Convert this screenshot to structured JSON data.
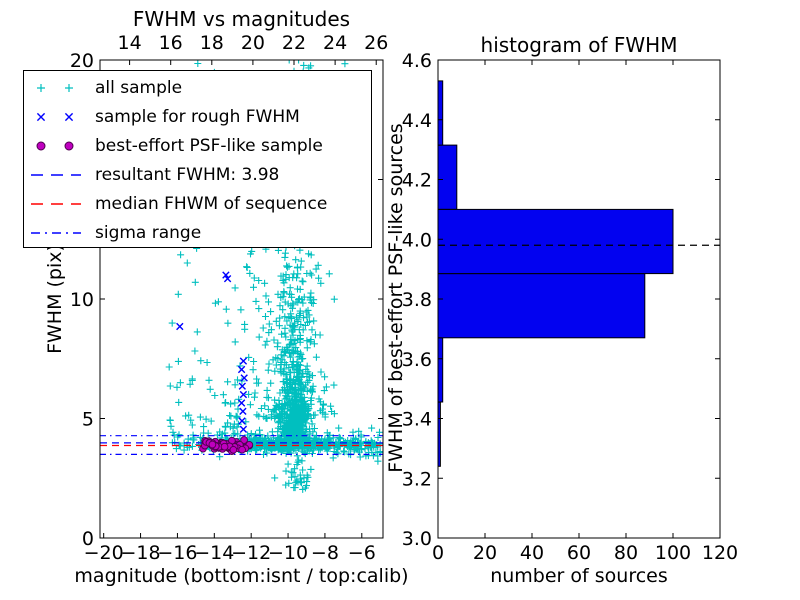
{
  "colors": {
    "cyan": "#00bfbf",
    "blue": "#0000ff",
    "magenta": "#bf00bf",
    "magenta_edge": "#4d004d",
    "red": "#ff0000",
    "black": "#000000",
    "bar_fill": "#0202f0",
    "frame": "#000000",
    "background": "#ffffff"
  },
  "chart_data": [
    {
      "type": "scatter",
      "title": "FWHM vs magnitudes",
      "xlabel": "magnitude (bottom:isnt / top:calib)",
      "ylabel": "FWHM (pix)",
      "xlim": [
        -20.2,
        -4.85
      ],
      "ylim": [
        0,
        20
      ],
      "grid": false,
      "x_bottom_ticks": {
        "values": [
          -20,
          -18,
          -16,
          -14,
          -12,
          -10,
          -8,
          -6
        ],
        "labels": [
          "−20",
          "−18",
          "−16",
          "−14",
          "−12",
          "−10",
          "−8",
          "−6"
        ]
      },
      "x_top_ticks": {
        "calib_lim": [
          12.56,
          26.33
        ],
        "values": [
          14,
          16,
          18,
          20,
          22,
          24,
          26
        ],
        "labels": [
          "14",
          "16",
          "18",
          "20",
          "22",
          "24",
          "26"
        ]
      },
      "y_ticks": {
        "values": [
          0,
          5,
          10,
          15,
          20
        ],
        "labels": [
          "0",
          "5",
          "10",
          "15",
          "20"
        ]
      },
      "hlines": [
        {
          "y": 4.28,
          "style": "dashdot",
          "color": "blue",
          "name": "sigma-range-upper"
        },
        {
          "y": 3.98,
          "style": "dashed",
          "color": "blue",
          "name": "resultant-fwhm"
        },
        {
          "y": 3.87,
          "style": "dashed",
          "color": "red",
          "name": "median-fwhm"
        },
        {
          "y": 3.5,
          "style": "dashdot",
          "color": "blue",
          "name": "sigma-range-lower"
        }
      ],
      "series": [
        {
          "name": "all sample",
          "marker": "plus",
          "color": "cyan",
          "seed": 42,
          "clusters": [
            {
              "n": 450,
              "x": {
                "dist": "normal",
                "mu": -10.0,
                "sd": 2.0,
                "min": -16.3,
                "max": -5.0
              },
              "y": {
                "dist": "normal",
                "mu": 3.92,
                "sd": 0.13,
                "min": 3.4,
                "max": 4.5
              }
            },
            {
              "n": 150,
              "x": {
                "dist": "uniform",
                "min": -16.3,
                "max": -5.0
              },
              "y": {
                "dist": "normal",
                "mu": 3.95,
                "sd": 0.22,
                "min": 3.3,
                "max": 4.7
              }
            },
            {
              "n": 550,
              "x": {
                "dist": "normal",
                "mu": -9.65,
                "sd": 0.45,
                "min": -12,
                "max": -7.5
              },
              "y": {
                "dist": "expshift",
                "base": 3.75,
                "mu": 0.45,
                "sd": 0.85,
                "max": 20
              }
            },
            {
              "n": 250,
              "x": {
                "dist": "normal",
                "mu": -9.9,
                "sd": 1.1,
                "min": -13.5,
                "max": -6.2
              },
              "y": {
                "dist": "powband",
                "min": 5.0,
                "span": 9.0,
                "pow": 1.6
              }
            },
            {
              "n": 90,
              "x": {
                "dist": "uniform",
                "min": -16.5,
                "max": -11.0
              },
              "y": {
                "dist": "powband",
                "min": 4.3,
                "span": 8.5,
                "pow": 2.2
              }
            },
            {
              "n": 40,
              "x": {
                "dist": "uniform",
                "min": -15.0,
                "max": -6.3
              },
              "y": {
                "dist": "uniform",
                "min": 13.5,
                "max": 20.0
              }
            },
            {
              "n": 35,
              "x": {
                "dist": "normal",
                "mu": -9.5,
                "sd": 0.55,
                "min": -11,
                "max": -8
              },
              "y": {
                "dist": "uniform",
                "min": 2.0,
                "max": 3.6
              }
            },
            {
              "n": 40,
              "x": {
                "dist": "uniform",
                "min": -7.6,
                "max": -5.0
              },
              "y": {
                "dist": "normal",
                "mu": 3.9,
                "sd": 0.3,
                "min": 3.2,
                "max": 4.6
              }
            }
          ]
        },
        {
          "name": "sample for rough FWHM",
          "marker": "cross",
          "color": "blue",
          "points": [
            [
              -13.37,
              11.0
            ],
            [
              -13.28,
              10.85
            ],
            [
              -15.87,
              8.85
            ],
            [
              -12.42,
              7.4
            ],
            [
              -12.52,
              7.05
            ],
            [
              -12.38,
              6.7
            ],
            [
              -12.48,
              6.35
            ],
            [
              -12.42,
              6.0
            ],
            [
              -12.52,
              5.65
            ],
            [
              -12.45,
              5.3
            ],
            [
              -12.5,
              4.9
            ],
            [
              -12.42,
              4.55
            ]
          ]
        },
        {
          "name": "best-effort PSF-like sample",
          "marker": "circle",
          "color": "magenta",
          "seed": 7,
          "clusters": [
            {
              "n": 60,
              "x": {
                "dist": "normal",
                "mu": -13.55,
                "sd": 0.62,
                "min": -15.15,
                "max": -12.1
              },
              "y": {
                "dist": "normal",
                "mu": 3.88,
                "sd": 0.12,
                "min": 3.6,
                "max": 4.2
              }
            }
          ]
        }
      ],
      "legend": {
        "items": [
          {
            "label": "all sample",
            "type": "marker",
            "marker": "plus",
            "color": "cyan"
          },
          {
            "label": "sample for rough FWHM",
            "type": "marker",
            "marker": "cross",
            "color": "blue"
          },
          {
            "label": "best-effort PSF-like sample",
            "type": "marker",
            "marker": "circle",
            "color": "magenta"
          },
          {
            "label": "resultant FWHM: 3.98",
            "type": "line",
            "style": "dashed",
            "color": "blue"
          },
          {
            "label": "median FHWM of sequence",
            "type": "line",
            "style": "dashed",
            "color": "red"
          },
          {
            "label": "sigma range",
            "type": "line",
            "style": "dashdot",
            "color": "blue"
          }
        ]
      }
    },
    {
      "type": "bar",
      "orientation": "horizontal",
      "title": "histogram of FWHM",
      "xlabel": "number of sources",
      "ylabel": "FWHM of best-effort PSF-like sources",
      "xlim": [
        0,
        120
      ],
      "ylim": [
        3.0,
        4.6
      ],
      "grid": false,
      "x_ticks": {
        "values": [
          0,
          20,
          40,
          60,
          80,
          100,
          120
        ],
        "labels": [
          "0",
          "20",
          "40",
          "60",
          "80",
          "100",
          "120"
        ]
      },
      "y_ticks": {
        "values": [
          3.0,
          3.2,
          3.4,
          3.6,
          3.8,
          4.0,
          4.2,
          4.4,
          4.6
        ],
        "labels": [
          "3.0",
          "3.2",
          "3.4",
          "3.6",
          "3.8",
          "4.0",
          "4.2",
          "4.4",
          "4.6"
        ]
      },
      "bin_edges": [
        3.24,
        3.455,
        3.67,
        3.885,
        4.1,
        4.315,
        4.53
      ],
      "counts": [
        1,
        2,
        88,
        100,
        8,
        2
      ],
      "bar_color": "bar_fill",
      "hline": {
        "y": 3.98,
        "style": "dashed",
        "color": "black",
        "name": "resultant-fwhm-marker"
      }
    }
  ]
}
